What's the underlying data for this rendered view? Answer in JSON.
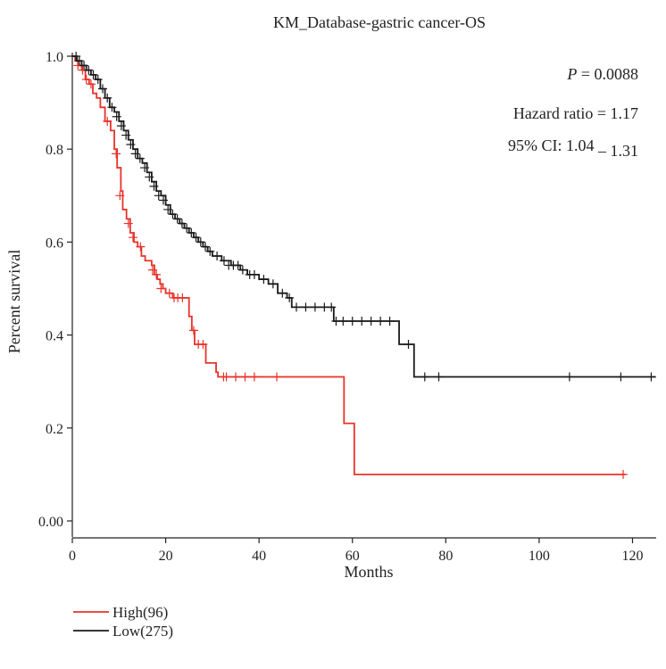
{
  "chart_data": {
    "type": "line",
    "title": "KM_Database-gastric cancer-OS",
    "xlabel": "Months",
    "ylabel": "Percent survival",
    "xlim": [
      0,
      125
    ],
    "ylim": [
      0,
      1.0
    ],
    "x_ticks": [
      0,
      20,
      40,
      60,
      80,
      100,
      120
    ],
    "x_tick_labels": [
      "0",
      "20",
      "40",
      "60",
      "80",
      "100",
      "120"
    ],
    "y_ticks": [
      0,
      0.2,
      0.4,
      0.6,
      0.8,
      1.0
    ],
    "y_tick_labels": [
      "0.00",
      "0.2",
      "0.4",
      "0.6",
      "0.8",
      "1.0"
    ],
    "grid": false,
    "legend_position": "bottom-left",
    "annotations": {
      "p_label": "P",
      "p_value": "= 0.0088",
      "hazard_ratio": "Hazard ratio = 1.17",
      "ci_label": "95% CI: 1.04",
      "ci_dash": "–",
      "ci_upper": "1.31"
    },
    "series": [
      {
        "name": "High(96)",
        "color": "#e8332a",
        "steps": [
          [
            0,
            1.0
          ],
          [
            0.6,
            0.99
          ],
          [
            1.2,
            0.98
          ],
          [
            2.0,
            0.97
          ],
          [
            2.8,
            0.95
          ],
          [
            3.6,
            0.94
          ],
          [
            4.4,
            0.92
          ],
          [
            5.2,
            0.91
          ],
          [
            6.0,
            0.89
          ],
          [
            7.0,
            0.86
          ],
          [
            8.2,
            0.84
          ],
          [
            9.0,
            0.8
          ],
          [
            9.6,
            0.76
          ],
          [
            10.4,
            0.71
          ],
          [
            10.8,
            0.67
          ],
          [
            11.6,
            0.65
          ],
          [
            12.4,
            0.62
          ],
          [
            13.2,
            0.6
          ],
          [
            14.0,
            0.59
          ],
          [
            14.8,
            0.57
          ],
          [
            15.6,
            0.56
          ],
          [
            17.0,
            0.55
          ],
          [
            17.6,
            0.53
          ],
          [
            18.2,
            0.52
          ],
          [
            18.8,
            0.51
          ],
          [
            19.4,
            0.5
          ],
          [
            20.0,
            0.49
          ],
          [
            21.5,
            0.48
          ],
          [
            25.0,
            0.44
          ],
          [
            25.6,
            0.41
          ],
          [
            26.2,
            0.38
          ],
          [
            28.6,
            0.34
          ],
          [
            30.8,
            0.32
          ],
          [
            31.2,
            0.31
          ],
          [
            58.2,
            0.21
          ],
          [
            60.4,
            0.1
          ],
          [
            118.5,
            0.1
          ]
        ],
        "censors": [
          [
            1.2,
            0.98
          ],
          [
            2.2,
            0.97
          ],
          [
            3.0,
            0.95
          ],
          [
            4.0,
            0.94
          ],
          [
            7.5,
            0.86
          ],
          [
            9.4,
            0.79
          ],
          [
            10.2,
            0.7
          ],
          [
            12.0,
            0.64
          ],
          [
            13.0,
            0.61
          ],
          [
            14.6,
            0.59
          ],
          [
            17.2,
            0.54
          ],
          [
            18.0,
            0.53
          ],
          [
            19.0,
            0.5
          ],
          [
            20.8,
            0.49
          ],
          [
            21.8,
            0.48
          ],
          [
            22.6,
            0.48
          ],
          [
            23.6,
            0.48
          ],
          [
            26.0,
            0.41
          ],
          [
            27.0,
            0.38
          ],
          [
            28.0,
            0.38
          ],
          [
            32.4,
            0.31
          ],
          [
            33.0,
            0.31
          ],
          [
            35.0,
            0.31
          ],
          [
            37.0,
            0.31
          ],
          [
            39.0,
            0.31
          ],
          [
            43.8,
            0.31
          ],
          [
            118.0,
            0.1
          ]
        ]
      },
      {
        "name": "Low(275)",
        "color": "#1a1a1a",
        "steps": [
          [
            0,
            1.0
          ],
          [
            1.0,
            0.99
          ],
          [
            2.0,
            0.98
          ],
          [
            3.0,
            0.97
          ],
          [
            4.0,
            0.96
          ],
          [
            5.0,
            0.95
          ],
          [
            6.0,
            0.93
          ],
          [
            7.0,
            0.91
          ],
          [
            8.0,
            0.89
          ],
          [
            9.0,
            0.88
          ],
          [
            10.0,
            0.86
          ],
          [
            11.0,
            0.84
          ],
          [
            12.0,
            0.82
          ],
          [
            13.0,
            0.8
          ],
          [
            14.0,
            0.78
          ],
          [
            15.0,
            0.77
          ],
          [
            16.0,
            0.75
          ],
          [
            17.0,
            0.73
          ],
          [
            18.0,
            0.71
          ],
          [
            19.0,
            0.7
          ],
          [
            20.0,
            0.68
          ],
          [
            21.0,
            0.66
          ],
          [
            22.0,
            0.65
          ],
          [
            23.0,
            0.64
          ],
          [
            24.0,
            0.63
          ],
          [
            25.0,
            0.62
          ],
          [
            26.0,
            0.61
          ],
          [
            27.0,
            0.6
          ],
          [
            28.0,
            0.59
          ],
          [
            29.0,
            0.58
          ],
          [
            30.0,
            0.57
          ],
          [
            32.0,
            0.56
          ],
          [
            34.0,
            0.55
          ],
          [
            36.0,
            0.54
          ],
          [
            37.5,
            0.53
          ],
          [
            40.0,
            0.52
          ],
          [
            42.0,
            0.51
          ],
          [
            44.0,
            0.49
          ],
          [
            46.0,
            0.48
          ],
          [
            47.0,
            0.46
          ],
          [
            56.0,
            0.43
          ],
          [
            70.0,
            0.38
          ],
          [
            73.2,
            0.31
          ],
          [
            125,
            0.31
          ]
        ],
        "censors": [
          [
            0.8,
            1.0
          ],
          [
            1.5,
            0.99
          ],
          [
            2.5,
            0.98
          ],
          [
            3.5,
            0.97
          ],
          [
            4.5,
            0.96
          ],
          [
            5.5,
            0.95
          ],
          [
            6.5,
            0.93
          ],
          [
            7.5,
            0.91
          ],
          [
            8.5,
            0.89
          ],
          [
            9.5,
            0.87
          ],
          [
            10.5,
            0.85
          ],
          [
            11.5,
            0.83
          ],
          [
            12.5,
            0.81
          ],
          [
            13.5,
            0.79
          ],
          [
            14.5,
            0.78
          ],
          [
            15.5,
            0.76
          ],
          [
            16.5,
            0.74
          ],
          [
            17.5,
            0.72
          ],
          [
            18.5,
            0.7
          ],
          [
            19.5,
            0.69
          ],
          [
            20.5,
            0.67
          ],
          [
            21.5,
            0.66
          ],
          [
            22.5,
            0.65
          ],
          [
            23.5,
            0.64
          ],
          [
            24.5,
            0.63
          ],
          [
            25.5,
            0.62
          ],
          [
            26.5,
            0.61
          ],
          [
            27.5,
            0.6
          ],
          [
            28.5,
            0.59
          ],
          [
            29.5,
            0.58
          ],
          [
            31.0,
            0.57
          ],
          [
            32.5,
            0.56
          ],
          [
            33.5,
            0.55
          ],
          [
            34.5,
            0.55
          ],
          [
            35.5,
            0.55
          ],
          [
            36.5,
            0.54
          ],
          [
            38.0,
            0.53
          ],
          [
            39.0,
            0.53
          ],
          [
            41.0,
            0.52
          ],
          [
            43.0,
            0.51
          ],
          [
            45.0,
            0.49
          ],
          [
            46.5,
            0.48
          ],
          [
            48.0,
            0.46
          ],
          [
            50.0,
            0.46
          ],
          [
            52.0,
            0.46
          ],
          [
            54.0,
            0.46
          ],
          [
            55.5,
            0.46
          ],
          [
            56.5,
            0.43
          ],
          [
            58.0,
            0.43
          ],
          [
            60.0,
            0.43
          ],
          [
            62.0,
            0.43
          ],
          [
            64.0,
            0.43
          ],
          [
            66.0,
            0.43
          ],
          [
            68.0,
            0.43
          ],
          [
            72.0,
            0.38
          ],
          [
            75.5,
            0.31
          ],
          [
            78.5,
            0.31
          ],
          [
            106.5,
            0.31
          ],
          [
            117.5,
            0.31
          ],
          [
            124.0,
            0.31
          ]
        ]
      }
    ]
  }
}
